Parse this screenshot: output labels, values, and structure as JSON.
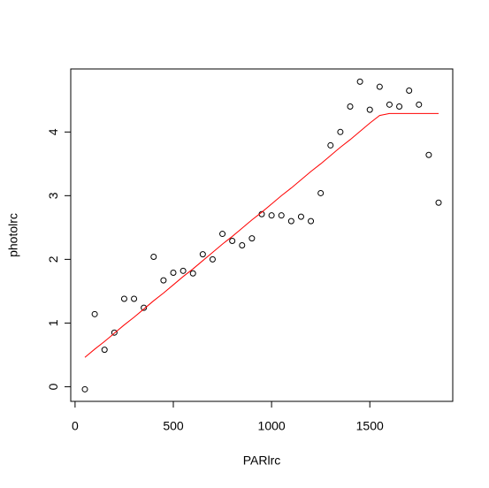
{
  "chart_data": {
    "type": "scatter",
    "x_label": "PARlrc",
    "y_label": "photolrc",
    "x": [
      50,
      100,
      150,
      200,
      250,
      300,
      350,
      400,
      450,
      500,
      550,
      600,
      650,
      700,
      750,
      800,
      850,
      900,
      950,
      1000,
      1050,
      1100,
      1150,
      1200,
      1250,
      1300,
      1350,
      1400,
      1450,
      1500,
      1550,
      1600,
      1650,
      1700,
      1750,
      1800,
      1850
    ],
    "series": [
      {
        "type": "scatter",
        "color": "#000000",
        "values": [
          -0.04,
          1.14,
          0.58,
          0.85,
          1.38,
          1.38,
          1.24,
          2.04,
          1.67,
          1.79,
          1.82,
          1.78,
          2.08,
          2.0,
          2.4,
          2.29,
          2.22,
          2.33,
          2.71,
          2.69,
          2.69,
          2.6,
          2.67,
          2.6,
          3.04,
          3.79,
          4.0,
          4.4,
          4.79,
          4.35,
          4.71,
          4.43,
          4.4,
          4.65,
          4.43,
          3.64,
          2.89
        ]
      },
      {
        "type": "line",
        "color": "#ff0000",
        "values": [
          0.46,
          0.59,
          0.71,
          0.84,
          0.97,
          1.09,
          1.22,
          1.35,
          1.47,
          1.6,
          1.73,
          1.85,
          1.98,
          2.11,
          2.24,
          2.36,
          2.49,
          2.62,
          2.74,
          2.87,
          3.0,
          3.12,
          3.25,
          3.38,
          3.5,
          3.63,
          3.76,
          3.88,
          4.01,
          4.14,
          4.26,
          4.29,
          4.29,
          4.29,
          4.29,
          4.29,
          4.29
        ]
      }
    ],
    "xlim": [
      -22,
      1922
    ],
    "ylim": [
      -0.23,
      4.99
    ],
    "xticks": [
      0,
      500,
      1000,
      1500
    ],
    "yticks": [
      0,
      1,
      2,
      3,
      4
    ]
  }
}
